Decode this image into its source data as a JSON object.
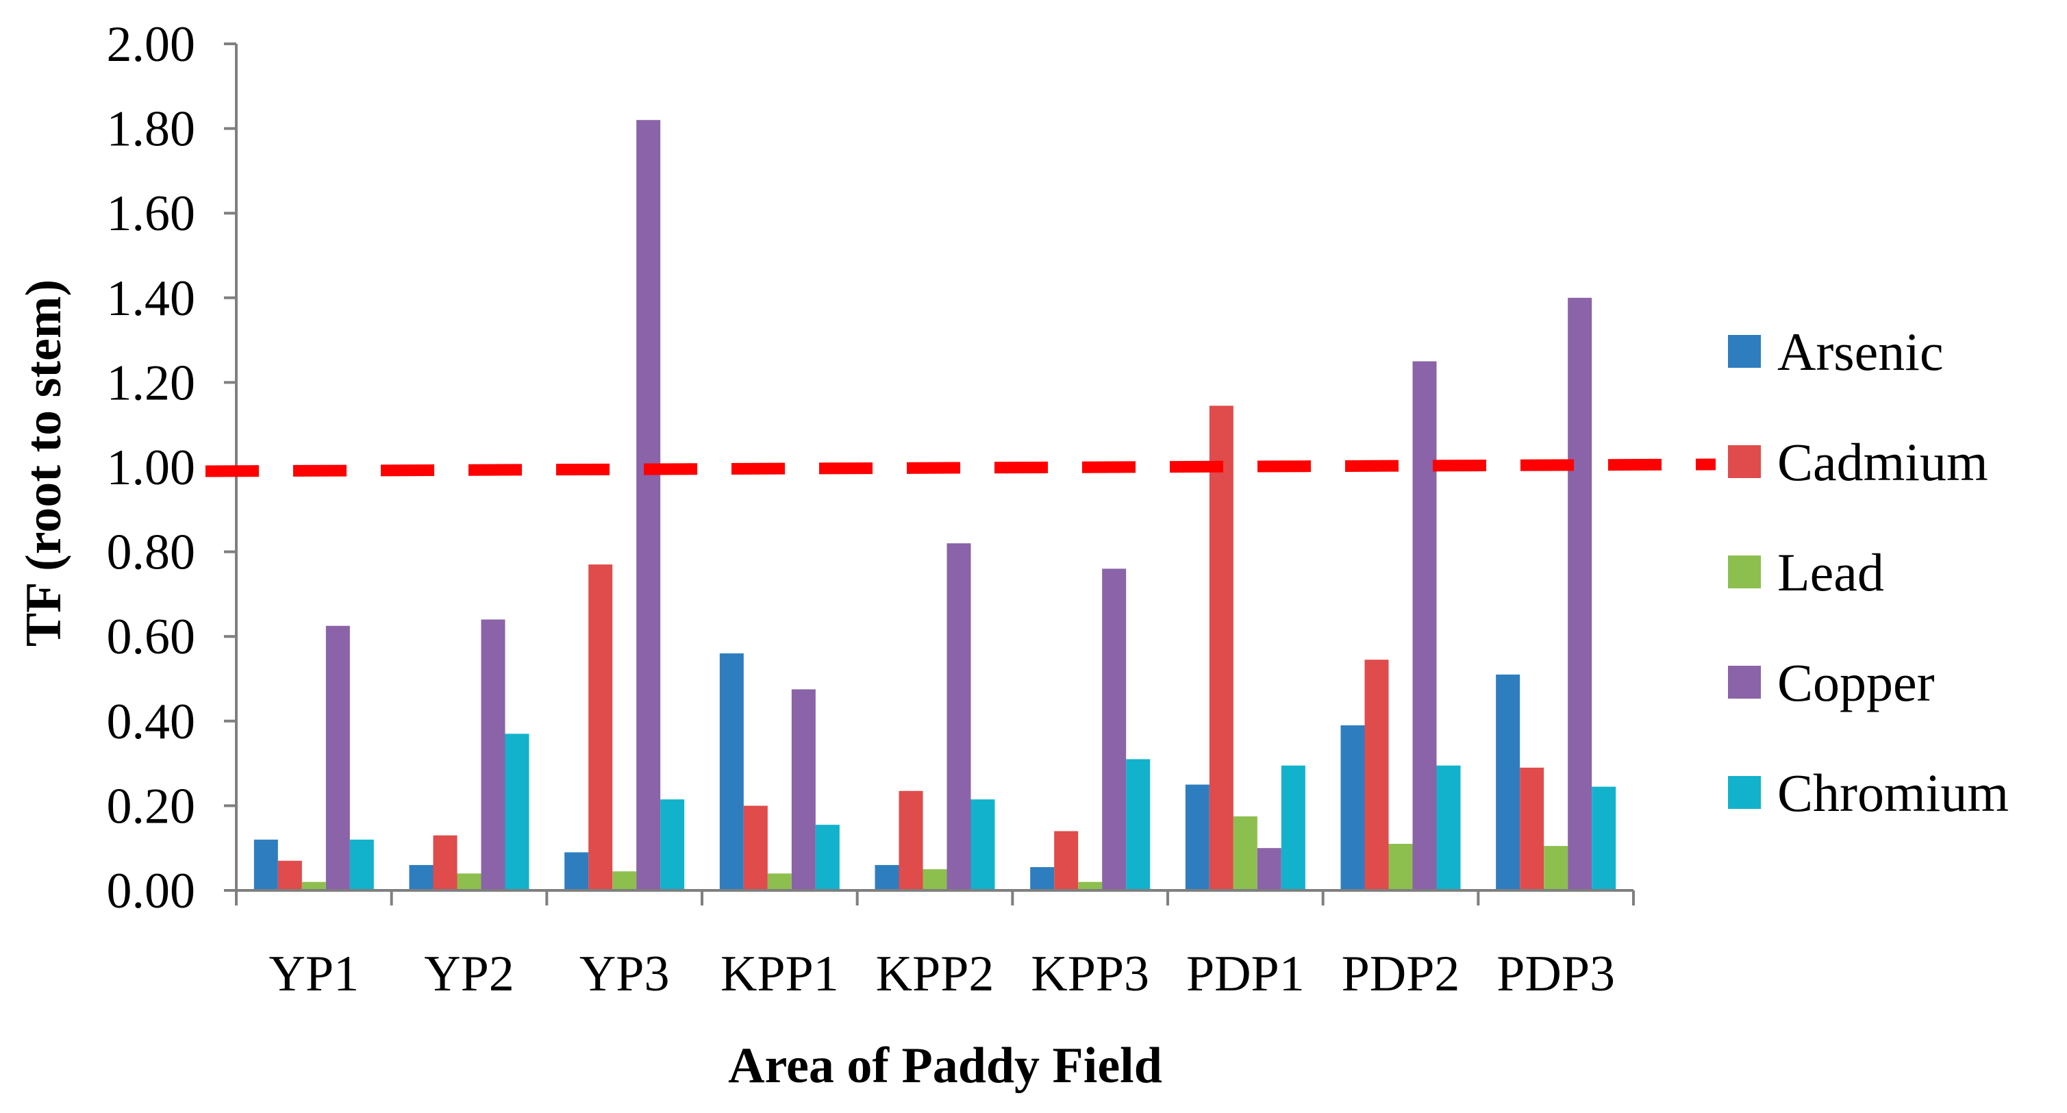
{
  "chart_data": {
    "type": "bar",
    "title": "",
    "xlabel": "Area of Paddy Field",
    "ylabel": "TF (root to stem)",
    "ylim": [
      0,
      2.0
    ],
    "yticks": [
      "0.00",
      "0.20",
      "0.40",
      "0.60",
      "0.80",
      "1.00",
      "1.20",
      "1.40",
      "1.60",
      "1.80",
      "2.00"
    ],
    "categories": [
      "YP1",
      "YP2",
      "YP3",
      "KPP1",
      "KPP2",
      "KPP3",
      "PDP1",
      "PDP2",
      "PDP3"
    ],
    "series": [
      {
        "name": "Arsenic",
        "color": "#2e7ebf",
        "values": [
          0.12,
          0.06,
          0.09,
          0.56,
          0.06,
          0.055,
          0.25,
          0.39,
          0.51
        ]
      },
      {
        "name": "Cadmium",
        "color": "#e04b4b",
        "values": [
          0.07,
          0.13,
          0.77,
          0.2,
          0.235,
          0.14,
          1.145,
          0.545,
          0.29
        ]
      },
      {
        "name": "Lead",
        "color": "#8dbf4f",
        "values": [
          0.02,
          0.04,
          0.045,
          0.04,
          0.05,
          0.02,
          0.175,
          0.11,
          0.105
        ]
      },
      {
        "name": "Copper",
        "color": "#8a63a8",
        "values": [
          0.625,
          0.64,
          1.82,
          0.475,
          0.82,
          0.76,
          0.1,
          1.25,
          1.4
        ]
      },
      {
        "name": "Chromium",
        "color": "#12b2cc",
        "values": [
          0.12,
          0.37,
          0.215,
          0.155,
          0.215,
          0.31,
          0.295,
          0.295,
          0.245
        ]
      }
    ],
    "reference_line": {
      "value": 1.0,
      "style": "dashed",
      "color": "#ff0000"
    },
    "legend_position": "right",
    "grid": false
  }
}
